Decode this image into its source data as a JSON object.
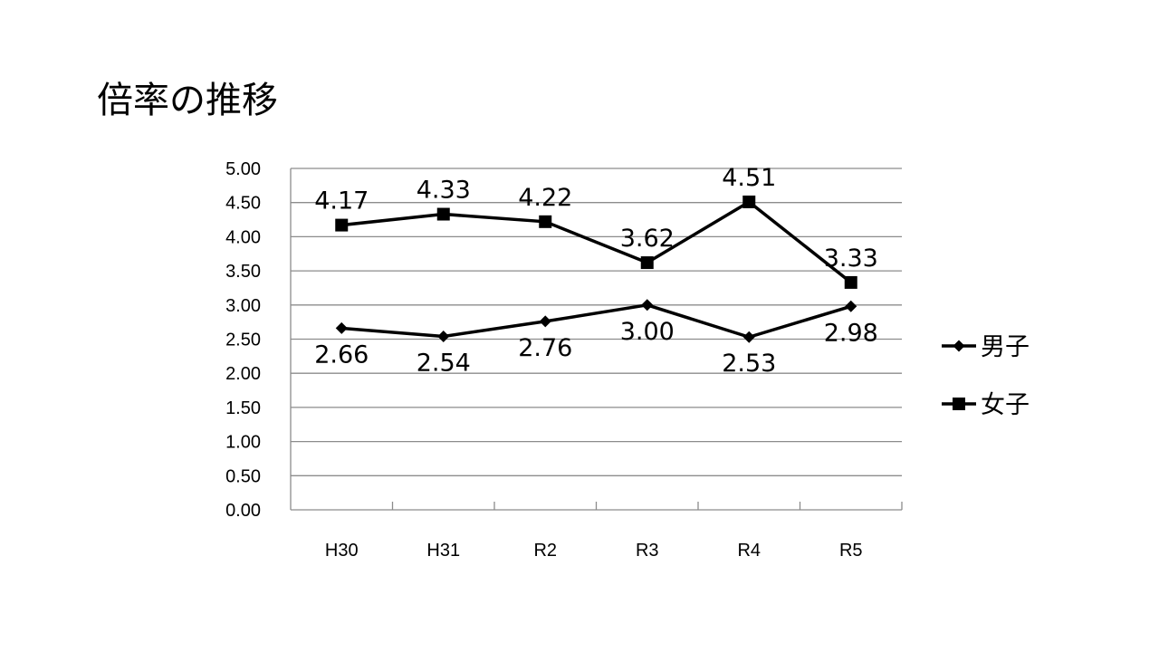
{
  "slide": {
    "title": "倍率の推移"
  },
  "chart_data": {
    "type": "line",
    "categories": [
      "H30",
      "H31",
      "R2",
      "R3",
      "R4",
      "R5"
    ],
    "ylim": [
      0,
      5
    ],
    "y_tick_labels": [
      "0.00",
      "0.50",
      "1.00",
      "1.50",
      "2.00",
      "2.50",
      "3.00",
      "3.50",
      "4.00",
      "4.50",
      "5.00"
    ],
    "grid": true,
    "legend_position": "right",
    "series": [
      {
        "name": "男子",
        "marker": "diamond",
        "color": "#000000",
        "label_position": "below",
        "values": [
          2.66,
          2.54,
          2.76,
          3.0,
          2.53,
          2.98
        ],
        "labels": [
          "2.66",
          "2.54",
          "2.76",
          "3.00",
          "2.53",
          "2.98"
        ]
      },
      {
        "name": "女子",
        "marker": "square",
        "color": "#000000",
        "label_position": "above",
        "values": [
          4.17,
          4.33,
          4.22,
          3.62,
          4.51,
          3.33
        ],
        "labels": [
          "4.17",
          "4.33",
          "4.22",
          "3.62",
          "4.51",
          "3.33"
        ]
      }
    ]
  }
}
